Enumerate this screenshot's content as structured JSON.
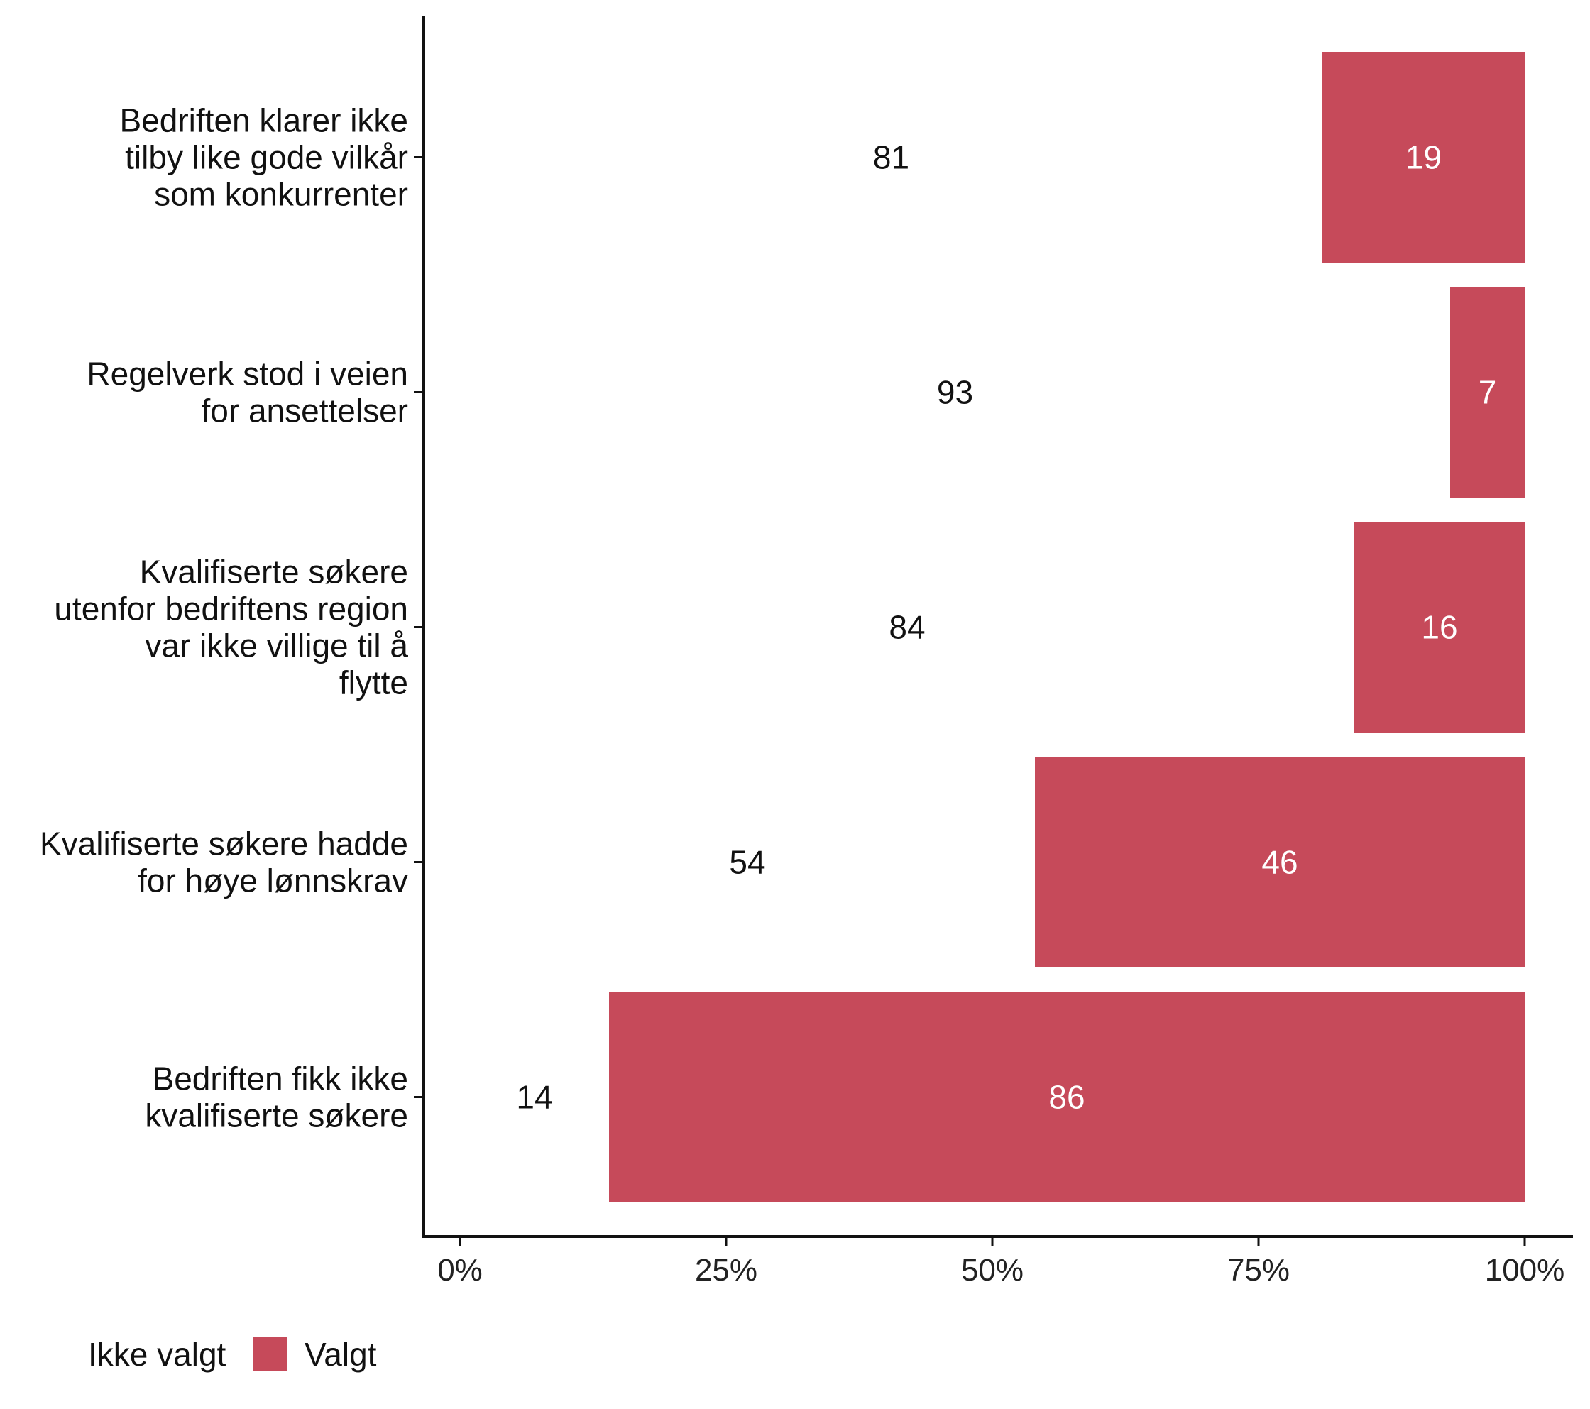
{
  "chart_data": {
    "type": "bar",
    "orientation": "horizontal",
    "stacked": true,
    "categories": [
      [
        "Bedriften klarer ikke",
        "tilby like gode vilkår",
        "som konkurrenter"
      ],
      [
        "Regelverk stod i veien",
        "for ansettelser"
      ],
      [
        "Kvalifiserte søkere",
        "utenfor bedriftens region",
        "var ikke villige til å",
        "flytte"
      ],
      [
        "Kvalifiserte søkere hadde",
        "for høye lønnskrav"
      ],
      [
        "Bedriften fikk ikke",
        "kvalifiserte søkere"
      ]
    ],
    "series": [
      {
        "name": "Ikke valgt",
        "values": [
          81,
          93,
          84,
          54,
          14
        ],
        "color": "#ffffff",
        "label_color": "#111111"
      },
      {
        "name": "Valgt",
        "values": [
          19,
          7,
          16,
          46,
          86
        ],
        "color": "#c64a5a",
        "label_color": "#ffffff"
      }
    ],
    "xlim": [
      0,
      100
    ],
    "xticks": [
      0,
      25,
      50,
      75,
      100
    ],
    "xtick_labels": [
      "0%",
      "25%",
      "50%",
      "75%",
      "100%"
    ],
    "title": "",
    "xlabel": "",
    "ylabel": "",
    "grid": false,
    "legend_position": "bottom-left"
  }
}
